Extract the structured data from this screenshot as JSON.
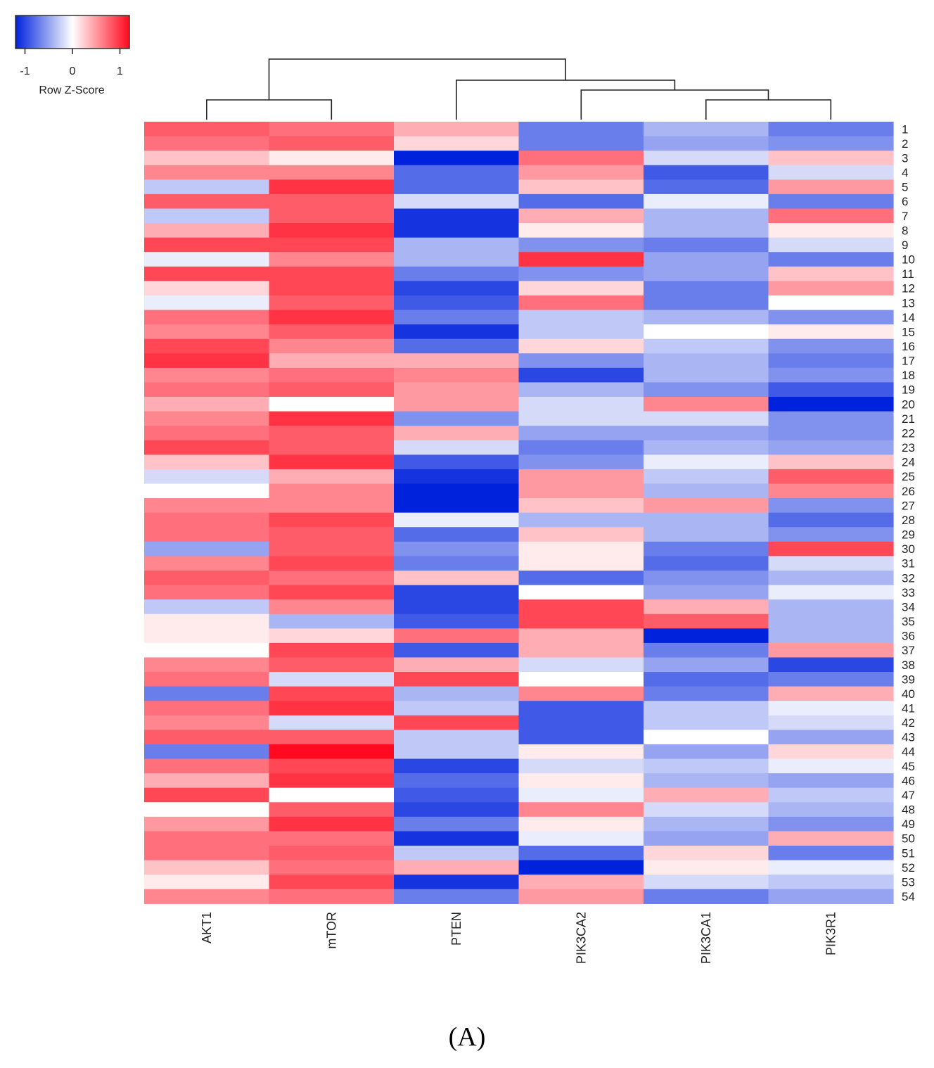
{
  "chart_data": {
    "type": "heatmap",
    "title": "",
    "columns": [
      "AKT1",
      "mTOR",
      "PTEN",
      "PIK3CA2",
      "PIK3CA1",
      "PIK3R1"
    ],
    "rows": [
      "1",
      "2",
      "3",
      "4",
      "5",
      "6",
      "7",
      "8",
      "9",
      "10",
      "11",
      "12",
      "13",
      "14",
      "15",
      "16",
      "17",
      "18",
      "19",
      "20",
      "21",
      "22",
      "23",
      "24",
      "25",
      "26",
      "27",
      "28",
      "29",
      "30",
      "31",
      "32",
      "33",
      "34",
      "35",
      "36",
      "37",
      "38",
      "39",
      "40",
      "41",
      "42",
      "43",
      "44",
      "45",
      "46",
      "47",
      "48",
      "49",
      "50",
      "51",
      "52",
      "53",
      "54"
    ],
    "values": [
      [
        0.8,
        0.7,
        0.4,
        -0.7,
        -0.4,
        -0.7
      ],
      [
        0.7,
        0.8,
        0.2,
        -0.7,
        -0.5,
        -0.6
      ],
      [
        0.3,
        0.1,
        -1.2,
        0.7,
        -0.2,
        0.3
      ],
      [
        0.6,
        0.6,
        -0.8,
        0.5,
        -0.9,
        -0.2
      ],
      [
        -0.3,
        1.0,
        -0.8,
        0.3,
        -0.8,
        0.5
      ],
      [
        0.8,
        0.8,
        -0.2,
        -0.8,
        -0.1,
        -0.7
      ],
      [
        -0.3,
        0.8,
        -1.1,
        0.4,
        -0.4,
        0.7
      ],
      [
        0.4,
        1.0,
        -1.1,
        0.1,
        -0.4,
        0.1
      ],
      [
        0.9,
        0.9,
        -0.4,
        -0.6,
        -0.7,
        -0.2
      ],
      [
        -0.1,
        0.6,
        -0.4,
        1.0,
        -0.5,
        -0.7
      ],
      [
        0.9,
        0.9,
        -0.7,
        -0.6,
        -0.5,
        0.3
      ],
      [
        0.2,
        0.9,
        -1.0,
        0.2,
        -0.7,
        0.5
      ],
      [
        -0.1,
        0.8,
        -0.9,
        0.7,
        -0.7,
        0.0
      ],
      [
        0.7,
        1.0,
        -0.7,
        -0.3,
        -0.4,
        -0.6
      ],
      [
        0.6,
        0.8,
        -1.1,
        -0.3,
        0.0,
        0.1
      ],
      [
        0.9,
        0.6,
        -0.8,
        0.2,
        -0.3,
        -0.6
      ],
      [
        1.0,
        0.4,
        0.4,
        -0.6,
        -0.4,
        -0.7
      ],
      [
        0.6,
        0.7,
        0.6,
        -1.0,
        -0.4,
        -0.6
      ],
      [
        0.7,
        0.8,
        0.5,
        -0.4,
        -0.6,
        -0.9
      ],
      [
        0.4,
        0.0,
        0.5,
        -0.2,
        0.6,
        -1.2
      ],
      [
        0.6,
        1.0,
        -0.6,
        -0.2,
        -0.2,
        -0.6
      ],
      [
        0.7,
        0.8,
        0.4,
        -0.5,
        -0.5,
        -0.6
      ],
      [
        0.9,
        0.8,
        -0.2,
        -0.7,
        -0.4,
        -0.5
      ],
      [
        0.3,
        1.0,
        -0.9,
        -0.6,
        -0.1,
        0.3
      ],
      [
        -0.2,
        0.4,
        -1.1,
        0.5,
        -0.3,
        0.8
      ],
      [
        0.0,
        0.6,
        -1.2,
        0.5,
        -0.4,
        0.6
      ],
      [
        0.6,
        0.6,
        -1.2,
        0.3,
        0.5,
        -0.6
      ],
      [
        0.7,
        0.9,
        -0.1,
        -0.4,
        -0.4,
        -0.8
      ],
      [
        0.7,
        0.8,
        -0.8,
        0.3,
        -0.4,
        -0.6
      ],
      [
        -0.5,
        0.8,
        -0.6,
        0.1,
        -0.7,
        0.9
      ],
      [
        0.6,
        0.9,
        -0.7,
        0.1,
        -0.8,
        -0.2
      ],
      [
        0.8,
        0.7,
        0.3,
        -0.8,
        -0.6,
        -0.4
      ],
      [
        0.7,
        0.9,
        -1.0,
        0.0,
        -0.5,
        -0.1
      ],
      [
        -0.3,
        0.6,
        -1.0,
        0.9,
        0.4,
        -0.4
      ],
      [
        0.1,
        -0.4,
        -0.9,
        0.9,
        0.8,
        -0.4
      ],
      [
        0.1,
        0.2,
        0.7,
        0.4,
        -1.2,
        -0.4
      ],
      [
        0.0,
        0.9,
        -0.9,
        0.4,
        -0.7,
        0.5
      ],
      [
        0.6,
        0.8,
        0.4,
        -0.2,
        -0.5,
        -1.0
      ],
      [
        0.7,
        -0.2,
        0.9,
        0.0,
        -0.8,
        -0.7
      ],
      [
        -0.7,
        0.9,
        -0.4,
        0.6,
        -0.7,
        0.4
      ],
      [
        0.7,
        1.0,
        -0.3,
        -0.9,
        -0.3,
        -0.1
      ],
      [
        0.6,
        -0.2,
        0.9,
        -0.9,
        -0.3,
        -0.2
      ],
      [
        0.8,
        0.8,
        -0.3,
        -0.9,
        0.0,
        -0.5
      ],
      [
        -0.7,
        1.2,
        -0.3,
        0.1,
        -0.5,
        0.2
      ],
      [
        0.7,
        0.9,
        -1.0,
        -0.2,
        -0.3,
        -0.1
      ],
      [
        0.4,
        1.0,
        -0.8,
        0.1,
        -0.4,
        -0.5
      ],
      [
        0.9,
        0.0,
        -0.9,
        -0.1,
        0.4,
        -0.3
      ],
      [
        0.0,
        0.8,
        -1.0,
        0.6,
        -0.2,
        -0.4
      ],
      [
        0.5,
        1.0,
        -0.7,
        0.1,
        -0.4,
        -0.6
      ],
      [
        0.7,
        0.7,
        -1.1,
        -0.1,
        -0.5,
        0.4
      ],
      [
        0.7,
        0.8,
        -0.3,
        -0.8,
        0.2,
        -0.7
      ],
      [
        0.3,
        0.7,
        0.4,
        -1.2,
        0.1,
        -0.1
      ],
      [
        0.1,
        0.9,
        -1.1,
        0.4,
        -0.2,
        -0.3
      ],
      [
        0.6,
        0.7,
        -0.7,
        0.5,
        -0.7,
        -0.5
      ]
    ],
    "color_scale": {
      "low": "#0022dd",
      "mid": "#ffffff",
      "high": "#ff0a1e",
      "min": -1.2,
      "max": 1.2
    },
    "legend": {
      "ticks": [
        "-1",
        "0",
        "1"
      ],
      "tick_values": [
        -1,
        0,
        1
      ],
      "label": "Row Z-Score",
      "position": "top-left"
    },
    "column_dendrogram": [
      {
        "left": "AKT1",
        "right": "mTOR",
        "height": 1
      },
      {
        "left": "PIK3CA1",
        "right": "PIK3R1",
        "height": 1
      },
      {
        "left": "PIK3CA2",
        "right": "PIK3CA1+PIK3R1",
        "height": 2
      },
      {
        "left": "PTEN",
        "right": "PIK3CA2+PIK3CA1+PIK3R1",
        "height": 3
      },
      {
        "left": "AKT1+mTOR",
        "right": "PTEN+PIK3CA2+PIK3CA1+PIK3R1",
        "height": 4
      }
    ]
  },
  "panel_label": "(A)"
}
